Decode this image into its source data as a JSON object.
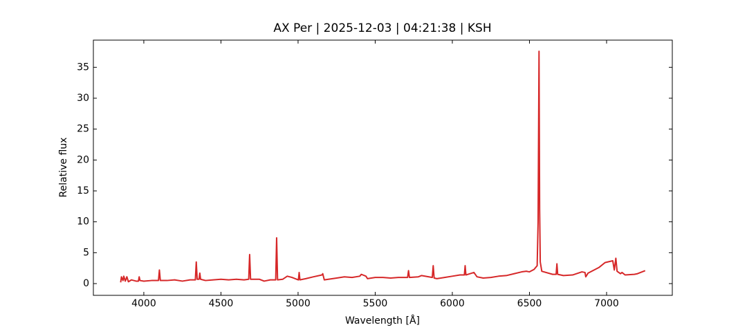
{
  "chart_data": {
    "type": "line",
    "title": "AX Per | 2025-12-03 | 04:21:38 | KSH",
    "xlabel": "Wavelength [Å]",
    "ylabel": "Relative flux",
    "x": [
      3850,
      3855,
      3865,
      3870,
      3880,
      3890,
      3900,
      3920,
      3950,
      3965,
      3970,
      3975,
      4000,
      4050,
      4095,
      4101,
      4107,
      4150,
      4200,
      4250,
      4300,
      4334,
      4340,
      4346,
      4358,
      4363,
      4368,
      4400,
      4450,
      4500,
      4550,
      4600,
      4650,
      4680,
      4686,
      4692,
      4750,
      4780,
      4820,
      4855,
      4861,
      4867,
      4900,
      4930,
      4960,
      5002,
      5007,
      5012,
      5050,
      5100,
      5155,
      5160,
      5170,
      5250,
      5300,
      5350,
      5400,
      5410,
      5440,
      5450,
      5500,
      5550,
      5600,
      5650,
      5710,
      5716,
      5722,
      5780,
      5800,
      5870,
      5876,
      5882,
      5900,
      5950,
      6000,
      6050,
      6078,
      6083,
      6088,
      6140,
      6160,
      6200,
      6250,
      6300,
      6350,
      6400,
      6450,
      6480,
      6500,
      6530,
      6550,
      6556,
      6562,
      6566,
      6570,
      6580,
      6650,
      6673,
      6678,
      6683,
      6720,
      6780,
      6840,
      6860,
      6865,
      6880,
      6950,
      6990,
      7040,
      7050,
      7060,
      7068,
      7090,
      7100,
      7120,
      7180,
      7200,
      7220,
      7250
    ],
    "series": [
      {
        "name": "AX Per",
        "color": "#d62728",
        "values": [
          0.2,
          1.1,
          0.5,
          1.2,
          0.4,
          1.1,
          0.3,
          0.6,
          0.4,
          0.4,
          1.1,
          0.5,
          0.4,
          0.5,
          0.5,
          2.2,
          0.5,
          0.5,
          0.6,
          0.4,
          0.6,
          0.6,
          3.5,
          0.7,
          0.7,
          1.7,
          0.7,
          0.5,
          0.6,
          0.7,
          0.6,
          0.7,
          0.6,
          0.7,
          4.7,
          0.7,
          0.7,
          0.4,
          0.6,
          0.6,
          7.4,
          0.6,
          0.7,
          1.2,
          1.0,
          0.6,
          1.8,
          0.6,
          0.8,
          1.1,
          1.4,
          1.6,
          0.6,
          0.9,
          1.1,
          1.0,
          1.2,
          1.5,
          1.2,
          0.8,
          1.0,
          1.0,
          0.9,
          1.0,
          1.0,
          2.1,
          1.0,
          1.1,
          1.3,
          1.0,
          2.9,
          0.9,
          0.8,
          1.0,
          1.2,
          1.4,
          1.4,
          2.9,
          1.4,
          1.8,
          1.1,
          0.9,
          1.0,
          1.2,
          1.3,
          1.6,
          1.9,
          2.0,
          1.9,
          2.3,
          2.9,
          10,
          37.6,
          12,
          3.5,
          2.0,
          1.5,
          1.5,
          3.2,
          1.5,
          1.3,
          1.4,
          1.9,
          1.8,
          1.1,
          1.7,
          2.6,
          3.4,
          3.7,
          2.2,
          4.1,
          2.0,
          1.6,
          1.8,
          1.4,
          1.5,
          1.6,
          1.8,
          2.1
        ]
      }
    ],
    "xlim": [
      3673,
      7426
    ],
    "ylim": [
      -1.9,
      39.4
    ],
    "xticks": [
      4000,
      4500,
      5000,
      5500,
      6000,
      6500,
      7000
    ],
    "yticks": [
      0,
      5,
      10,
      15,
      20,
      25,
      30,
      35
    ]
  }
}
